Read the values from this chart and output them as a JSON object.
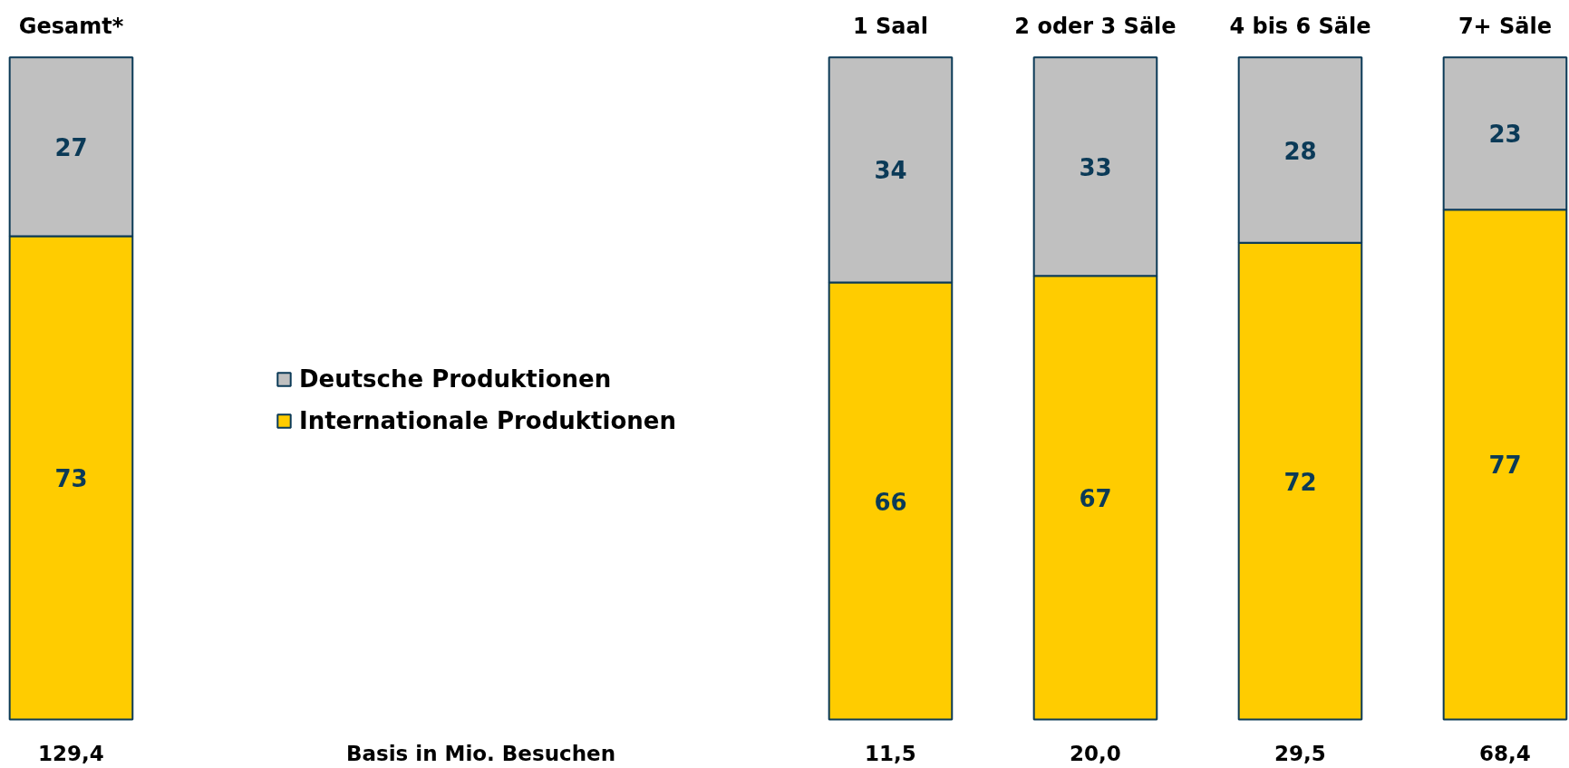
{
  "chart_data": {
    "type": "bar",
    "stacked": true,
    "categories": [
      "Gesamt*",
      null,
      null,
      null,
      "1 Saal",
      "2 oder 3 Säle",
      "4 bis 6 Säle",
      "7+ Säle"
    ],
    "series": [
      {
        "name": "Internationale Produktionen",
        "color": "#ffcc00",
        "values": [
          73,
          null,
          null,
          null,
          66,
          67,
          72,
          77
        ]
      },
      {
        "name": "Deutsche Produktionen",
        "color": "#c0c0c0",
        "values": [
          27,
          null,
          null,
          null,
          34,
          33,
          28,
          23
        ]
      }
    ],
    "data_labels": true,
    "legend": "left",
    "annotations": [
      "129,4",
      "Basis in Mio. Besuchen",
      "11,5",
      "20,0",
      "29,5",
      "68,4"
    ]
  }
}
